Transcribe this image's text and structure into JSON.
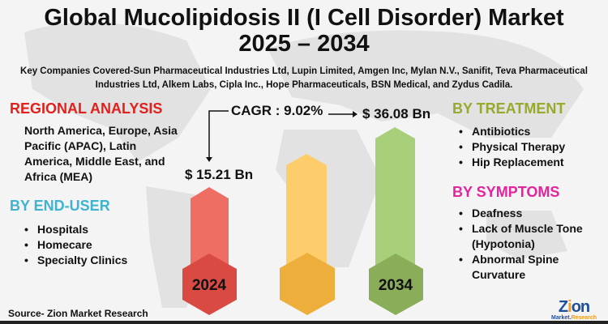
{
  "title": {
    "line1": "Global Mucolipidosis II (I Cell Disorder) Market",
    "line2": "2025 – 2034"
  },
  "subtitle": "Key Companies Covered-Sun Pharmaceutical Industries Ltd, Lupin Limited, Amgen Inc, Mylan N.V., Sanifit, Teva Pharmaceutical Industries Ltd, Alkem Labs, Cipla Inc., Hope Pharmaceuticals, BSN Medical, and Zydus Cadila.",
  "regional": {
    "heading": "REGIONAL ANALYSIS",
    "text": "North America, Europe, Asia Pacific (APAC), Latin America, Middle East, and Africa (MEA)",
    "color": "#e3201b"
  },
  "end_user": {
    "heading": "BY END-USER",
    "items": [
      "Hospitals",
      "Homecare",
      "Specialty Clinics"
    ],
    "color": "#3fb3cf"
  },
  "treatment": {
    "heading": "BY TREATMENT",
    "items": [
      "Antibiotics",
      "Physical Therapy",
      " Hip Replacement"
    ],
    "color": "#9aa82c"
  },
  "symptoms": {
    "heading": "BY SYMPTOMS",
    "items": [
      "Deafness",
      "Lack of Muscle Tone (Hypotonia)",
      "Abnormal Spine Curvature"
    ],
    "color": "#e3249b"
  },
  "market": {
    "cagr": "CAGR : 9.02%",
    "start_value": "$ 15.21 Bn",
    "end_value": "$ 36.08 Bn",
    "start_year": "2024",
    "end_year": "2034"
  },
  "source": "Source- Zion Market Research",
  "logo": {
    "text": "Zion",
    "subtext": "Market.Research"
  }
}
